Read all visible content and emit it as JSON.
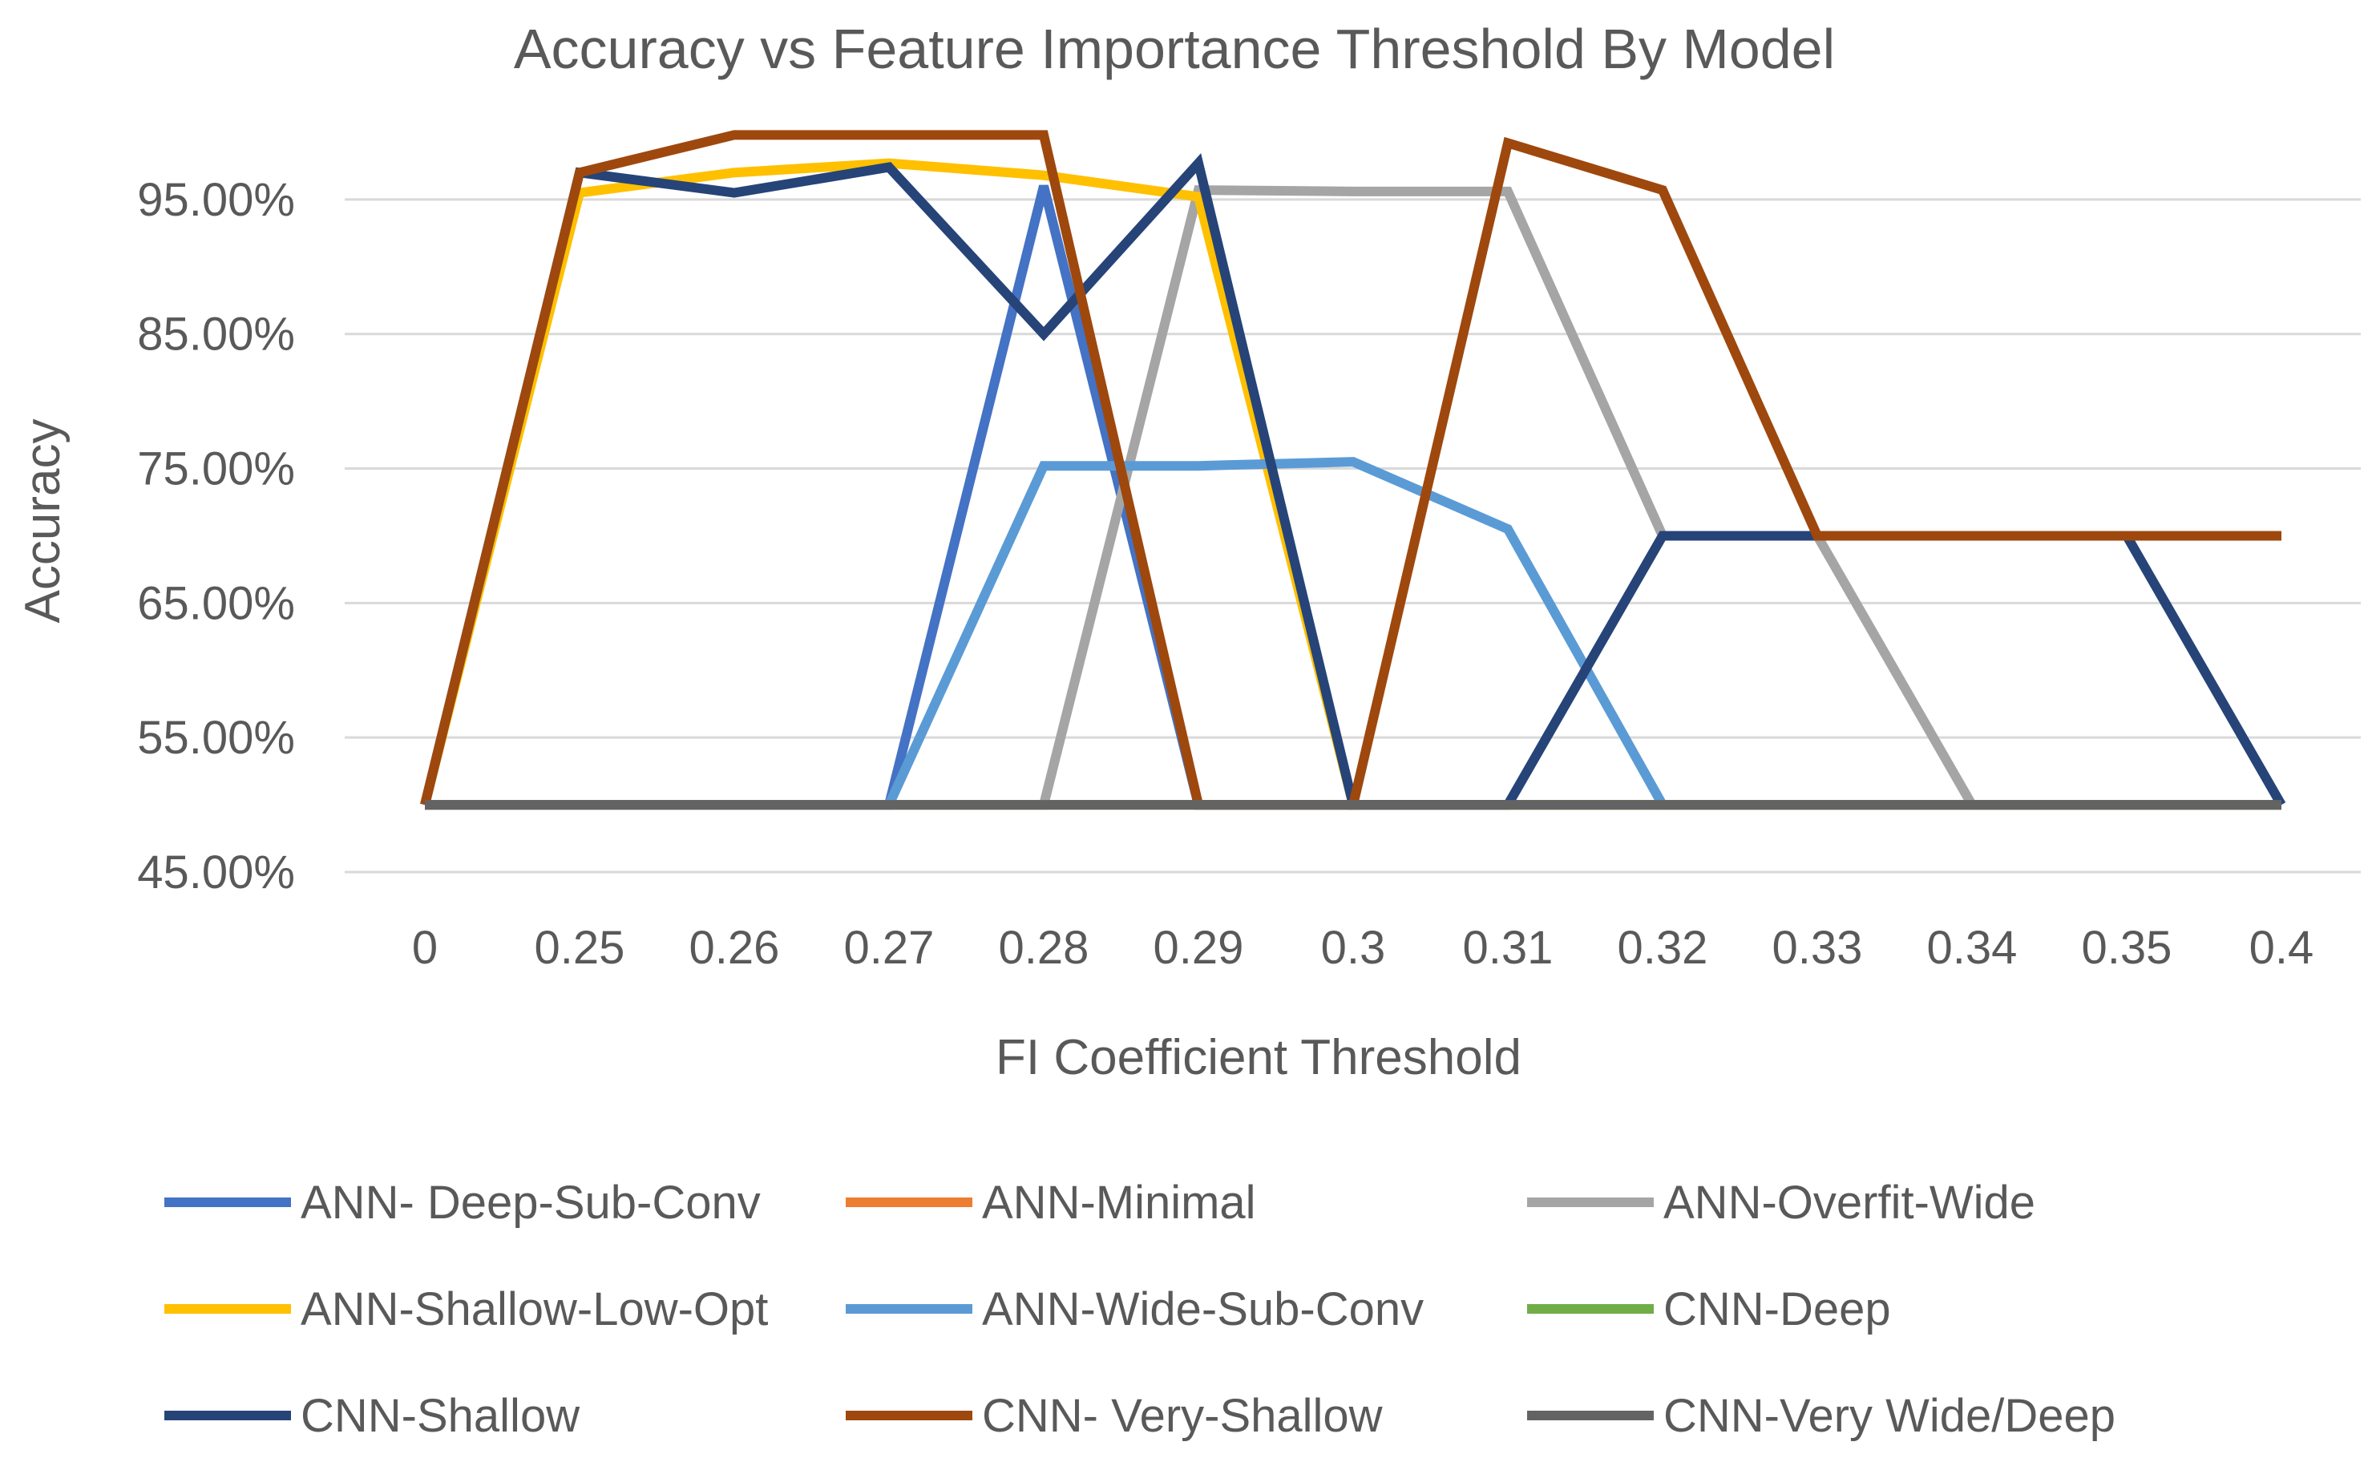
{
  "chart_data": {
    "type": "line",
    "title": "Accuracy vs Feature Importance Threshold By Model",
    "xlabel": "FI Coefficient Threshold",
    "ylabel": "Accuracy",
    "x": [
      "0",
      "0.25",
      "0.26",
      "0.27",
      "0.28",
      "0.29",
      "0.3",
      "0.31",
      "0.32",
      "0.33",
      "0.34",
      "0.35",
      "0.4"
    ],
    "ylim": [
      0.45,
      1.0
    ],
    "yticks": [
      "45.00%",
      "55.00%",
      "65.00%",
      "75.00%",
      "85.00%",
      "95.00%"
    ],
    "ytick_values": [
      0.45,
      0.55,
      0.65,
      0.75,
      0.85,
      0.95
    ],
    "grid": true,
    "legend_position": "bottom",
    "series": [
      {
        "name": "ANN- Deep-Sub-Conv",
        "color": "#4472C4",
        "values": [
          0.5,
          0.5,
          0.5,
          0.5,
          0.96,
          0.5,
          0.5,
          0.5,
          0.5,
          0.5,
          0.5,
          0.5,
          0.5
        ]
      },
      {
        "name": "ANN-Minimal",
        "color": "#ED7D31",
        "values": [
          0.5,
          0.5,
          0.5,
          0.5,
          0.5,
          0.5,
          0.5,
          0.5,
          0.5,
          0.5,
          0.5,
          0.5,
          0.5
        ]
      },
      {
        "name": "ANN-Overfit-Wide",
        "color": "#A5A5A5",
        "values": [
          0.5,
          0.5,
          0.5,
          0.5,
          0.5,
          0.957,
          0.956,
          0.956,
          0.7,
          0.7,
          0.5,
          0.5,
          0.5
        ]
      },
      {
        "name": "ANN-Shallow-Low-Opt",
        "color": "#FFC000",
        "values": [
          0.5,
          0.955,
          0.97,
          0.977,
          0.968,
          0.952,
          0.5,
          0.5,
          0.5,
          0.5,
          0.5,
          0.5,
          0.5
        ]
      },
      {
        "name": "ANN-Wide-Sub-Conv",
        "color": "#5B9BD5",
        "values": [
          0.5,
          0.5,
          0.5,
          0.5,
          0.752,
          0.752,
          0.755,
          0.705,
          0.5,
          0.5,
          0.5,
          0.5,
          0.5
        ]
      },
      {
        "name": "CNN-Deep",
        "color": "#70AD47",
        "values": [
          0.5,
          0.5,
          0.5,
          0.5,
          0.5,
          0.5,
          0.5,
          0.5,
          0.5,
          0.5,
          0.5,
          0.5,
          0.5
        ]
      },
      {
        "name": "CNN-Shallow",
        "color": "#264478",
        "values": [
          0.5,
          0.97,
          0.955,
          0.974,
          0.85,
          0.977,
          0.5,
          0.5,
          0.7,
          0.7,
          0.7,
          0.7,
          0.5
        ]
      },
      {
        "name": "CNN- Very-Shallow",
        "color": "#9E480E",
        "values": [
          0.5,
          0.97,
          0.998,
          0.998,
          0.998,
          0.5,
          0.5,
          0.992,
          0.957,
          0.7,
          0.7,
          0.7,
          0.7
        ]
      },
      {
        "name": "CNN-Very Wide/Deep",
        "color": "#636363",
        "values": [
          0.5,
          0.5,
          0.5,
          0.5,
          0.5,
          0.5,
          0.5,
          0.5,
          0.5,
          0.5,
          0.5,
          0.5,
          0.5
        ]
      }
    ]
  }
}
